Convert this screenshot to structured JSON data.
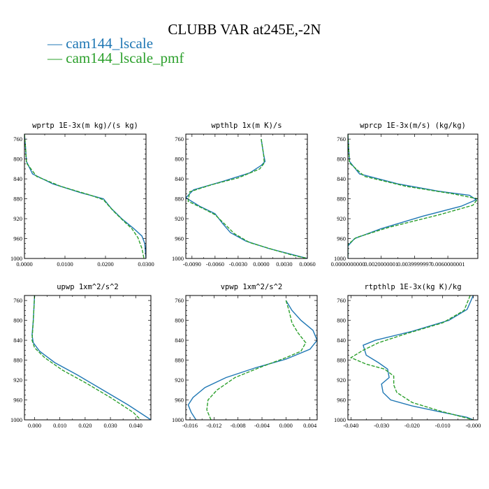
{
  "title": "CLUBB VAR at245E,-2N",
  "legend": [
    {
      "label": "— cam144_lscale",
      "color": "#1f77b4"
    },
    {
      "label": "— cam144_lscale_pmf",
      "color": "#2ca02c"
    }
  ],
  "chart_data": [
    {
      "type": "line",
      "title": "wprtp  1E-3x(m kg)/(s kg)",
      "ylim": [
        1000,
        750
      ],
      "yticks": [
        760,
        800,
        840,
        880,
        920,
        960,
        1000
      ],
      "xlim": [
        0.0,
        0.03
      ],
      "xticks": [
        0.0,
        0.01,
        0.02,
        0.03
      ],
      "xticklabels": [
        "0.0000",
        "0.0100",
        "0.0200",
        "0.0300"
      ],
      "series": [
        {
          "name": "cam144_lscale",
          "points": [
            [
              0.0,
              750
            ],
            [
              0.0003,
              780
            ],
            [
              0.0005,
              805
            ],
            [
              0.002,
              830
            ],
            [
              0.007,
              850
            ],
            [
              0.014,
              868
            ],
            [
              0.0195,
              880
            ],
            [
              0.0215,
              900
            ],
            [
              0.024,
              920
            ],
            [
              0.027,
              940
            ],
            [
              0.029,
              955
            ],
            [
              0.0297,
              970
            ],
            [
              0.03,
              1000
            ]
          ]
        },
        {
          "name": "cam144_lscale_pmf",
          "points": [
            [
              0.0,
              750
            ],
            [
              0.0003,
              780
            ],
            [
              0.0005,
              808
            ],
            [
              0.003,
              835
            ],
            [
              0.009,
              855
            ],
            [
              0.016,
              872
            ],
            [
              0.0195,
              882
            ],
            [
              0.022,
              905
            ],
            [
              0.0245,
              925
            ],
            [
              0.0265,
              940
            ],
            [
              0.028,
              958
            ],
            [
              0.029,
              980
            ],
            [
              0.0295,
              1000
            ]
          ]
        }
      ]
    },
    {
      "type": "line",
      "title": "wpthlp  1x(m K)/s",
      "ylim": [
        1000,
        750
      ],
      "yticks": [
        760,
        800,
        840,
        880,
        920,
        960,
        1000
      ],
      "xlim": [
        -0.0098,
        0.006
      ],
      "xticks": [
        -0.009,
        -0.006,
        -0.003,
        0.0,
        0.003,
        0.006
      ],
      "xticklabels": [
        "-0.0090",
        "-0.0060",
        "-0.0030",
        "0.0000",
        "0.0030",
        "0.0060"
      ],
      "series": [
        {
          "name": "cam144_lscale",
          "points": [
            [
              0.0,
              760
            ],
            [
              0.0003,
              790
            ],
            [
              0.0005,
              805
            ],
            [
              0.0,
              813
            ],
            [
              -0.0015,
              828
            ],
            [
              -0.005,
              845
            ],
            [
              -0.0088,
              862
            ],
            [
              -0.0098,
              878
            ],
            [
              -0.008,
              895
            ],
            [
              -0.006,
              910
            ],
            [
              -0.005,
              930
            ],
            [
              -0.004,
              948
            ],
            [
              -0.002,
              965
            ],
            [
              0.001,
              980
            ],
            [
              0.004,
              992
            ],
            [
              0.006,
              1000
            ]
          ]
        },
        {
          "name": "cam144_lscale_pmf",
          "points": [
            [
              0.0,
              760
            ],
            [
              0.0003,
              790
            ],
            [
              0.0004,
              808
            ],
            [
              -0.0002,
              820
            ],
            [
              -0.003,
              838
            ],
            [
              -0.0065,
              852
            ],
            [
              -0.0093,
              866
            ],
            [
              -0.0095,
              885
            ],
            [
              -0.0075,
              900
            ],
            [
              -0.006,
              912
            ],
            [
              -0.0048,
              930
            ],
            [
              -0.0035,
              950
            ],
            [
              -0.0015,
              968
            ],
            [
              0.0015,
              982
            ],
            [
              0.004,
              993
            ],
            [
              0.006,
              1000
            ]
          ]
        }
      ]
    },
    {
      "type": "line",
      "title": "wprcp  1E-3x(m/s) (kg/kg)",
      "ylim": [
        1000,
        750
      ],
      "yticks": [
        760,
        800,
        840,
        880,
        920,
        960,
        1000
      ],
      "xlim": [
        0.0,
        0.0078
      ],
      "xticks": [
        0.0,
        0.002,
        0.004,
        0.006
      ],
      "xticklabels": [
        "0.0000000000",
        "0.0020000001",
        "0.0039999997",
        "0.0060000001"
      ],
      "series": [
        {
          "name": "cam144_lscale",
          "points": [
            [
              0.0,
              750
            ],
            [
              5e-05,
              780
            ],
            [
              0.0001,
              805
            ],
            [
              0.0007,
              830
            ],
            [
              0.003,
              850
            ],
            [
              0.0055,
              865
            ],
            [
              0.0073,
              873
            ],
            [
              0.0077,
              882
            ],
            [
              0.0068,
              895
            ],
            [
              0.0045,
              915
            ],
            [
              0.002,
              940
            ],
            [
              0.0004,
              960
            ],
            [
              0.0,
              975
            ],
            [
              0.0,
              1000
            ]
          ]
        },
        {
          "name": "cam144_lscale_pmf",
          "points": [
            [
              0.0,
              750
            ],
            [
              5e-05,
              780
            ],
            [
              0.0001,
              808
            ],
            [
              0.001,
              835
            ],
            [
              0.0035,
              855
            ],
            [
              0.0063,
              870
            ],
            [
              0.0078,
              880
            ],
            [
              0.0075,
              893
            ],
            [
              0.0055,
              912
            ],
            [
              0.0025,
              937
            ],
            [
              0.0005,
              958
            ],
            [
              0.0,
              972
            ],
            [
              0.0,
              1000
            ]
          ]
        }
      ]
    },
    {
      "type": "line",
      "title": "upwp  1xm^2/s^2",
      "ylim": [
        1000,
        750
      ],
      "yticks": [
        760,
        800,
        840,
        880,
        920,
        960,
        1000
      ],
      "xlim": [
        -0.004,
        0.046
      ],
      "xticks": [
        0.0,
        0.01,
        0.02,
        0.03,
        0.04
      ],
      "xticklabels": [
        "0.000",
        "0.010",
        "0.020",
        "0.030",
        "0.040"
      ],
      "series": [
        {
          "name": "cam144_lscale",
          "points": [
            [
              0.0,
              750
            ],
            [
              -0.0005,
              800
            ],
            [
              -0.001,
              830
            ],
            [
              -0.0005,
              845
            ],
            [
              0.002,
              862
            ],
            [
              0.008,
              885
            ],
            [
              0.017,
              910
            ],
            [
              0.027,
              940
            ],
            [
              0.037,
              970
            ],
            [
              0.046,
              1000
            ]
          ]
        },
        {
          "name": "cam144_lscale_pmf",
          "points": [
            [
              0.0,
              750
            ],
            [
              -0.0005,
              800
            ],
            [
              -0.001,
              840
            ],
            [
              0.0,
              855
            ],
            [
              0.004,
              875
            ],
            [
              0.011,
              900
            ],
            [
              0.02,
              925
            ],
            [
              0.03,
              955
            ],
            [
              0.039,
              985
            ],
            [
              0.042,
              1000
            ]
          ]
        }
      ]
    },
    {
      "type": "line",
      "title": "vpwp  1xm^2/s^2",
      "ylim": [
        1000,
        750
      ],
      "yticks": [
        760,
        800,
        840,
        880,
        920,
        960,
        1000
      ],
      "xlim": [
        -0.0167,
        0.0052
      ],
      "xticks": [
        -0.016,
        -0.012,
        -0.008,
        -0.004,
        0.0,
        0.004
      ],
      "xticklabels": [
        "-0.016",
        "-0.012",
        "-0.008",
        "-0.004",
        "0.000",
        "0.004"
      ],
      "series": [
        {
          "name": "cam144_lscale",
          "points": [
            [
              0.0,
              760
            ],
            [
              0.001,
              780
            ],
            [
              0.0025,
              800
            ],
            [
              0.0045,
              820
            ],
            [
              0.0052,
              840
            ],
            [
              0.004,
              858
            ],
            [
              0.0,
              878
            ],
            [
              -0.005,
              895
            ],
            [
              -0.01,
              915
            ],
            [
              -0.0135,
              935
            ],
            [
              -0.0155,
              955
            ],
            [
              -0.0163,
              970
            ],
            [
              -0.0158,
              985
            ],
            [
              -0.015,
              1000
            ]
          ]
        },
        {
          "name": "cam144_lscale_pmf",
          "points": [
            [
              0.0,
              760
            ],
            [
              0.0005,
              780
            ],
            [
              0.001,
              805
            ],
            [
              0.002,
              825
            ],
            [
              0.0033,
              845
            ],
            [
              0.0025,
              862
            ],
            [
              0.0,
              875
            ],
            [
              -0.004,
              893
            ],
            [
              -0.0085,
              915
            ],
            [
              -0.0115,
              940
            ],
            [
              -0.013,
              960
            ],
            [
              -0.0132,
              980
            ],
            [
              -0.0125,
              1000
            ]
          ]
        }
      ]
    },
    {
      "type": "line",
      "title": "rtpthlp  1E-3x(kg K)/kg",
      "ylim": [
        1000,
        750
      ],
      "yticks": [
        760,
        800,
        840,
        880,
        920,
        960,
        1000
      ],
      "xlim": [
        -0.041,
        0.0015
      ],
      "xticks": [
        -0.04,
        -0.03,
        -0.02,
        -0.01,
        0.0
      ],
      "xticklabels": [
        "-0.040",
        "-0.030",
        "-0.020",
        "-0.010",
        "-0.000"
      ],
      "series": [
        {
          "name": "cam144_lscale",
          "points": [
            [
              0.0,
              750
            ],
            [
              -0.002,
              778
            ],
            [
              -0.008,
              800
            ],
            [
              -0.02,
              822
            ],
            [
              -0.032,
              840
            ],
            [
              -0.036,
              850
            ],
            [
              -0.035,
              870
            ],
            [
              -0.031,
              885
            ],
            [
              -0.028,
              898
            ],
            [
              -0.0275,
              915
            ],
            [
              -0.03,
              928
            ],
            [
              -0.0295,
              945
            ],
            [
              -0.027,
              960
            ],
            [
              -0.02,
              972
            ],
            [
              -0.01,
              985
            ],
            [
              -0.002,
              995
            ],
            [
              0.0,
              1000
            ]
          ]
        },
        {
          "name": "cam144_lscale_pmf",
          "points": [
            [
              -0.001,
              750
            ],
            [
              -0.003,
              780
            ],
            [
              -0.01,
              805
            ],
            [
              -0.022,
              827
            ],
            [
              -0.031,
              845
            ],
            [
              -0.036,
              860
            ],
            [
              -0.04,
              875
            ],
            [
              -0.035,
              888
            ],
            [
              -0.029,
              898
            ],
            [
              -0.026,
              912
            ],
            [
              -0.026,
              930
            ],
            [
              -0.025,
              945
            ],
            [
              -0.02,
              965
            ],
            [
              -0.011,
              982
            ],
            [
              -0.003,
              995
            ],
            [
              0.0,
              1000
            ]
          ]
        }
      ]
    }
  ]
}
